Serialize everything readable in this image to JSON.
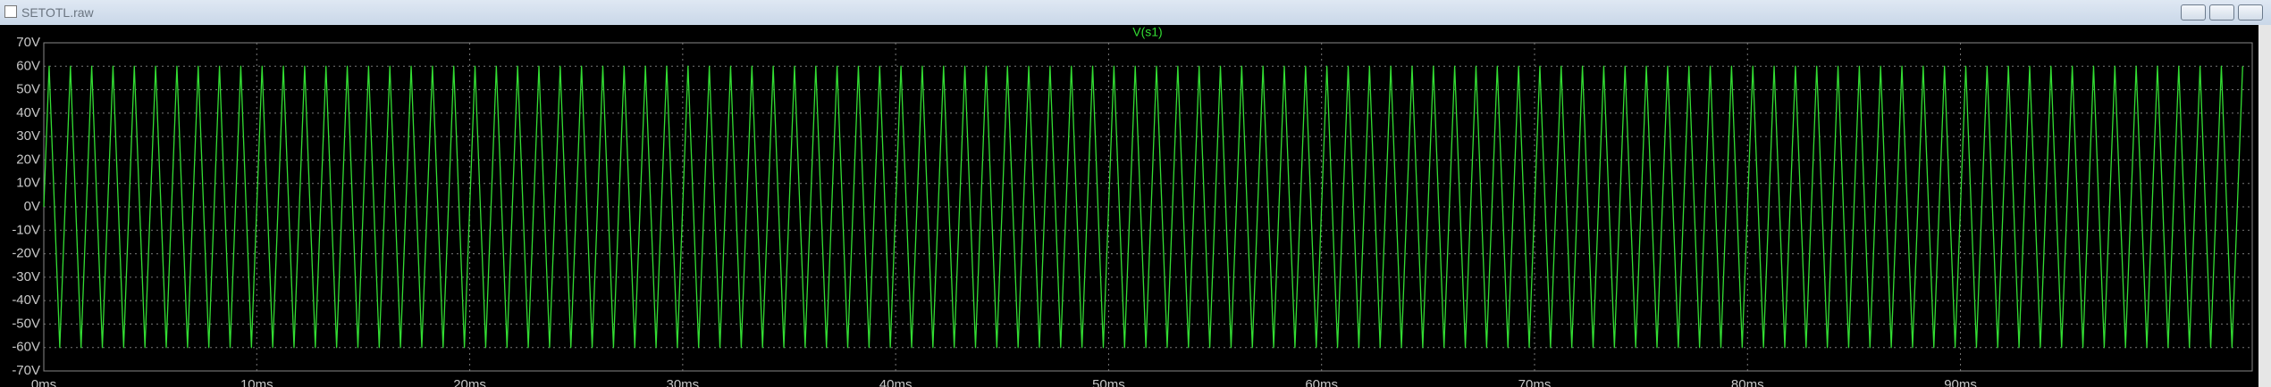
{
  "window": {
    "title": "SETOTL.raw"
  },
  "chart_data": {
    "type": "line",
    "title": "V(s1)",
    "x": [
      0,
      0.25,
      0.75,
      1.25,
      1.75,
      2.25,
      2.75,
      3.25,
      3.75,
      4.25,
      4.75,
      5.25,
      5.75,
      6.25,
      6.75,
      7.25,
      7.75,
      8.25,
      8.75,
      9.25,
      9.75,
      10.25,
      10.75,
      11.25,
      11.75,
      12.25,
      12.75,
      13.25,
      13.75,
      14.25,
      14.75,
      15.25,
      15.75,
      16.25,
      16.75,
      17.25,
      17.75,
      18.25,
      18.75,
      19.25,
      19.75,
      20.25,
      20.75,
      21.25,
      21.75,
      22.25,
      22.75,
      23.25,
      23.75,
      24.25,
      24.75,
      25.25,
      25.75,
      26.25,
      26.75,
      27.25,
      27.75,
      28.25,
      28.75,
      29.25,
      29.75,
      30.25,
      30.75,
      31.25,
      31.75,
      32.25,
      32.75,
      33.25,
      33.75,
      34.25,
      34.75,
      35.25,
      35.75,
      36.25,
      36.75,
      37.25,
      37.75,
      38.25,
      38.75,
      39.25,
      39.75,
      40.25,
      40.75,
      41.25,
      41.75,
      42.25,
      42.75,
      43.25,
      43.75,
      44.25,
      44.75,
      45.25,
      45.75,
      46.25,
      46.75,
      47.25,
      47.75,
      48.25,
      48.75,
      49.25,
      49.75,
      50.25,
      50.75,
      51.25,
      51.75,
      52.25,
      52.75,
      53.25,
      53.75,
      54.25,
      54.75,
      55.25,
      55.75,
      56.25,
      56.75,
      57.25,
      57.75,
      58.25,
      58.75,
      59.25,
      59.75,
      60.25,
      60.75,
      61.25,
      61.75,
      62.25,
      62.75,
      63.25,
      63.75,
      64.25,
      64.75,
      65.25,
      65.75,
      66.25,
      66.75,
      67.25,
      67.75,
      68.25,
      68.75,
      69.25,
      69.75,
      70.25,
      70.75,
      71.25,
      71.75,
      72.25,
      72.75,
      73.25,
      73.75,
      74.25,
      74.75,
      75.25,
      75.75,
      76.25,
      76.75,
      77.25,
      77.75,
      78.25,
      78.75,
      79.25,
      79.75,
      80.25,
      80.75,
      81.25,
      81.75,
      82.25,
      82.75,
      83.25,
      83.75,
      84.25,
      84.75,
      85.25,
      85.75,
      86.25,
      86.75,
      87.25,
      87.75,
      88.25,
      88.75,
      89.25,
      89.75,
      90.25,
      90.75,
      91.25,
      91.75,
      92.25,
      92.75,
      93.25,
      93.75,
      94.25,
      94.75,
      95.25,
      95.75,
      96.25,
      96.75,
      97.25,
      97.75,
      98.25,
      98.75,
      99.25,
      99.75,
      100.25,
      100.75,
      101.25,
      101.75,
      102.25,
      102.75,
      103.25
    ],
    "series": [
      {
        "name": "V(s1)",
        "color": "#33dd33",
        "values": [
          0,
          60,
          -60,
          60,
          -60,
          60,
          -60,
          60,
          -60,
          60,
          -60,
          60,
          -60,
          60,
          -60,
          60,
          -60,
          60,
          -60,
          60,
          -60,
          60,
          -60,
          60,
          -60,
          60,
          -60,
          60,
          -60,
          60,
          -60,
          60,
          -60,
          60,
          -60,
          60,
          -60,
          60,
          -60,
          60,
          -60,
          60,
          -60,
          60,
          -60,
          60,
          -60,
          60,
          -60,
          60,
          -60,
          60,
          -60,
          60,
          -60,
          60,
          -60,
          60,
          -60,
          60,
          -60,
          60,
          -60,
          60,
          -60,
          60,
          -60,
          60,
          -60,
          60,
          -60,
          60,
          -60,
          60,
          -60,
          60,
          -60,
          60,
          -60,
          60,
          -60,
          60,
          -60,
          60,
          -60,
          60,
          -60,
          60,
          -60,
          60,
          -60,
          60,
          -60,
          60,
          -60,
          60,
          -60,
          60,
          -60,
          60,
          -60,
          60,
          -60,
          60,
          -60,
          60,
          -60,
          60,
          -60,
          60,
          -60,
          60,
          -60,
          60,
          -60,
          60,
          -60,
          60,
          -60,
          60,
          -60,
          60,
          -60,
          60,
          -60,
          60,
          -60,
          60,
          -60,
          60,
          -60,
          60,
          -60,
          60,
          -60,
          60,
          -60,
          60,
          -60,
          60,
          -60,
          60,
          -60,
          60,
          -60,
          60,
          -60,
          60,
          -60,
          60,
          -60,
          60,
          -60,
          60,
          -60,
          60,
          -60,
          60,
          -60,
          60,
          -60,
          60,
          -60,
          60,
          -60,
          60,
          -60,
          60,
          -60,
          60,
          -60,
          60,
          -60,
          60,
          -60,
          60,
          -60,
          60,
          -60,
          60,
          -60,
          60,
          -60,
          60,
          -60,
          60,
          -60,
          60,
          -60,
          60,
          -60,
          60,
          -60,
          60,
          -60,
          60,
          -60,
          60,
          -60,
          60,
          -60,
          60,
          -60,
          60,
          -60,
          60,
          -60,
          60
        ]
      }
    ],
    "xlim": [
      0,
      103.7
    ],
    "xticks": [
      {
        "value": 0,
        "label": "0ms"
      },
      {
        "value": 10,
        "label": "10ms"
      },
      {
        "value": 20,
        "label": "20ms"
      },
      {
        "value": 30,
        "label": "30ms"
      },
      {
        "value": 40,
        "label": "40ms"
      },
      {
        "value": 50,
        "label": "50ms"
      },
      {
        "value": 60,
        "label": "60ms"
      },
      {
        "value": 70,
        "label": "70ms"
      },
      {
        "value": 80,
        "label": "80ms"
      },
      {
        "value": 90,
        "label": "90ms"
      }
    ],
    "ylim": [
      -70,
      70
    ],
    "yticks": [
      {
        "value": 70,
        "label": "70V"
      },
      {
        "value": 60,
        "label": "60V"
      },
      {
        "value": 50,
        "label": "50V"
      },
      {
        "value": 40,
        "label": "40V"
      },
      {
        "value": 30,
        "label": "30V"
      },
      {
        "value": 20,
        "label": "20V"
      },
      {
        "value": 10,
        "label": "10V"
      },
      {
        "value": 0,
        "label": "0V"
      },
      {
        "value": -10,
        "label": "-10V"
      },
      {
        "value": -20,
        "label": "-20V"
      },
      {
        "value": -30,
        "label": "-30V"
      },
      {
        "value": -40,
        "label": "-40V"
      },
      {
        "value": -50,
        "label": "-50V"
      },
      {
        "value": -60,
        "label": "-60V"
      },
      {
        "value": -70,
        "label": "-70V"
      }
    ],
    "grid": true
  }
}
